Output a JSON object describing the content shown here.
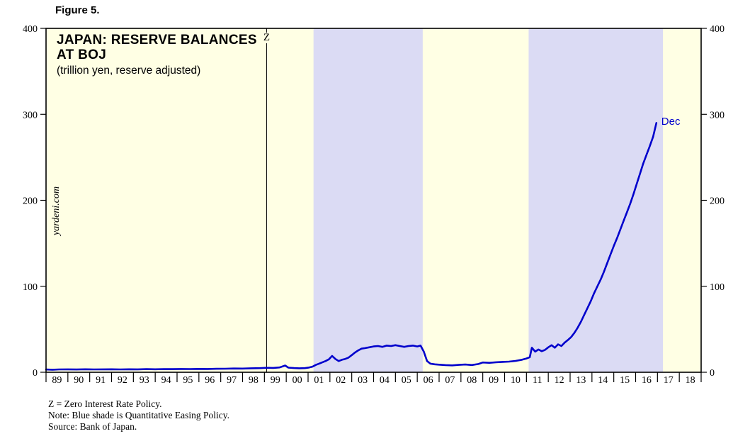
{
  "figure": {
    "label": "Figure 5."
  },
  "chart": {
    "title_line1": "JAPAN: RESERVE BALANCES",
    "title_line2": "AT BOJ",
    "subtitle": "(trillion yen, reserve adjusted)",
    "watermark": "yardeni.com",
    "z_label": "Z",
    "end_label": "Dec"
  },
  "footnotes": {
    "line1": "Z = Zero Interest Rate Policy.",
    "line2": "Note: Blue shade is Quantitative Easing Policy.",
    "line3": "Source: Bank of Japan."
  },
  "chart_data": {
    "type": "line",
    "title": "JAPAN: RESERVE BALANCES AT BOJ",
    "subtitle": "(trillion yen, reserve adjusted)",
    "ylabel": "trillion yen, reserve adjusted",
    "ylim": [
      0,
      400
    ],
    "yticks": [
      0,
      100,
      200,
      300,
      400
    ],
    "x_range": [
      1989,
      2019
    ],
    "x_tick_labels": [
      "89",
      "90",
      "91",
      "92",
      "93",
      "94",
      "95",
      "96",
      "97",
      "98",
      "99",
      "00",
      "01",
      "02",
      "03",
      "04",
      "05",
      "06",
      "07",
      "08",
      "09",
      "10",
      "11",
      "12",
      "13",
      "14",
      "15",
      "16",
      "17",
      "18"
    ],
    "grid": "off",
    "legend": "none",
    "zirp_line_year": 1999.1,
    "qe_periods": [
      [
        2001.25,
        2006.25
      ],
      [
        2011.1,
        2017.25
      ]
    ],
    "colors": {
      "line": "#0000cc",
      "plot_bg": "#ffffe4",
      "qe_shade": "#dbdbf4",
      "axis": "#000000",
      "annotation": "#0000cc"
    },
    "series": [
      {
        "name": "Reserve balances at BOJ (trillion yen)",
        "end_label": "Dec",
        "points": [
          [
            1989.0,
            3.2
          ],
          [
            1989.3,
            3.0
          ],
          [
            1989.6,
            3.3
          ],
          [
            1990.0,
            3.4
          ],
          [
            1990.4,
            3.2
          ],
          [
            1990.8,
            3.5
          ],
          [
            1991.2,
            3.3
          ],
          [
            1991.6,
            3.4
          ],
          [
            1992.0,
            3.5
          ],
          [
            1992.4,
            3.3
          ],
          [
            1992.8,
            3.5
          ],
          [
            1993.2,
            3.4
          ],
          [
            1993.6,
            3.6
          ],
          [
            1994.0,
            3.5
          ],
          [
            1994.4,
            3.7
          ],
          [
            1994.8,
            3.6
          ],
          [
            1995.2,
            3.8
          ],
          [
            1995.6,
            3.7
          ],
          [
            1996.0,
            3.9
          ],
          [
            1996.4,
            3.8
          ],
          [
            1996.8,
            4.0
          ],
          [
            1997.2,
            4.1
          ],
          [
            1997.6,
            4.4
          ],
          [
            1998.0,
            4.3
          ],
          [
            1998.4,
            4.6
          ],
          [
            1998.8,
            4.8
          ],
          [
            1999.1,
            5.2
          ],
          [
            1999.4,
            5.0
          ],
          [
            1999.7,
            5.6
          ],
          [
            1999.95,
            7.8
          ],
          [
            2000.1,
            5.4
          ],
          [
            2000.35,
            4.9
          ],
          [
            2000.6,
            4.6
          ],
          [
            2000.85,
            4.8
          ],
          [
            2001.05,
            5.5
          ],
          [
            2001.2,
            6.5
          ],
          [
            2001.35,
            8.5
          ],
          [
            2001.5,
            10.0
          ],
          [
            2001.65,
            11.5
          ],
          [
            2001.8,
            13.0
          ],
          [
            2001.95,
            15.0
          ],
          [
            2002.1,
            19.0
          ],
          [
            2002.25,
            15.5
          ],
          [
            2002.4,
            13.0
          ],
          [
            2002.55,
            14.5
          ],
          [
            2002.7,
            15.5
          ],
          [
            2002.85,
            17.0
          ],
          [
            2003.0,
            20.0
          ],
          [
            2003.15,
            23.0
          ],
          [
            2003.3,
            25.5
          ],
          [
            2003.45,
            27.5
          ],
          [
            2003.6,
            28.0
          ],
          [
            2003.8,
            29.0
          ],
          [
            2004.0,
            30.0
          ],
          [
            2004.2,
            30.5
          ],
          [
            2004.4,
            29.5
          ],
          [
            2004.6,
            31.0
          ],
          [
            2004.8,
            30.5
          ],
          [
            2005.0,
            31.5
          ],
          [
            2005.2,
            30.5
          ],
          [
            2005.4,
            29.5
          ],
          [
            2005.6,
            30.5
          ],
          [
            2005.8,
            31.0
          ],
          [
            2006.0,
            30.0
          ],
          [
            2006.15,
            31.0
          ],
          [
            2006.3,
            24.0
          ],
          [
            2006.45,
            13.0
          ],
          [
            2006.6,
            10.0
          ],
          [
            2006.8,
            9.2
          ],
          [
            2007.0,
            8.8
          ],
          [
            2007.3,
            8.3
          ],
          [
            2007.6,
            8.0
          ],
          [
            2007.9,
            8.6
          ],
          [
            2008.2,
            9.0
          ],
          [
            2008.5,
            8.4
          ],
          [
            2008.8,
            9.6
          ],
          [
            2009.0,
            11.4
          ],
          [
            2009.3,
            11.0
          ],
          [
            2009.6,
            11.6
          ],
          [
            2009.9,
            12.0
          ],
          [
            2010.2,
            12.4
          ],
          [
            2010.5,
            13.2
          ],
          [
            2010.8,
            14.6
          ],
          [
            2011.0,
            16.0
          ],
          [
            2011.15,
            17.5
          ],
          [
            2011.25,
            28.5
          ],
          [
            2011.4,
            24.0
          ],
          [
            2011.55,
            26.5
          ],
          [
            2011.7,
            24.5
          ],
          [
            2011.85,
            26.0
          ],
          [
            2012.0,
            29.0
          ],
          [
            2012.15,
            31.5
          ],
          [
            2012.3,
            28.5
          ],
          [
            2012.45,
            32.5
          ],
          [
            2012.6,
            30.5
          ],
          [
            2012.75,
            34.5
          ],
          [
            2012.9,
            37.5
          ],
          [
            2013.05,
            41.0
          ],
          [
            2013.2,
            46.0
          ],
          [
            2013.35,
            52.0
          ],
          [
            2013.5,
            59.0
          ],
          [
            2013.65,
            67.0
          ],
          [
            2013.8,
            75.0
          ],
          [
            2013.95,
            83.0
          ],
          [
            2014.1,
            92.0
          ],
          [
            2014.25,
            100.0
          ],
          [
            2014.4,
            108.0
          ],
          [
            2014.55,
            117.0
          ],
          [
            2014.7,
            127.0
          ],
          [
            2014.85,
            137.0
          ],
          [
            2015.0,
            147.0
          ],
          [
            2015.15,
            156.0
          ],
          [
            2015.3,
            166.0
          ],
          [
            2015.45,
            176.0
          ],
          [
            2015.6,
            186.0
          ],
          [
            2015.75,
            196.0
          ],
          [
            2015.9,
            207.0
          ],
          [
            2016.05,
            219.0
          ],
          [
            2016.2,
            231.0
          ],
          [
            2016.35,
            243.0
          ],
          [
            2016.5,
            253.0
          ],
          [
            2016.65,
            263.0
          ],
          [
            2016.8,
            274.0
          ],
          [
            2016.95,
            290.0
          ]
        ]
      }
    ]
  }
}
